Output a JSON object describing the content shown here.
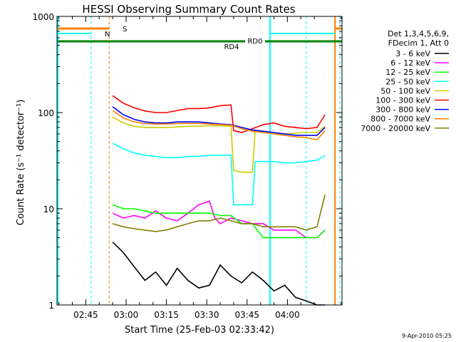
{
  "chart_data": {
    "type": "line",
    "title": "HESSI Observing Summary Count Rates",
    "xlabel": "Start Time (25-Feb-03 02:33:42)",
    "ylabel": "Count Rate (s⁻¹ detector⁻¹)",
    "y_scale": "log",
    "ylim": [
      1,
      1000
    ],
    "xlim_minutes": [
      -10.7,
      95.3
    ],
    "x_ticks": [
      {
        "label": "02:45",
        "minute": 0
      },
      {
        "label": "03:00",
        "minute": 15
      },
      {
        "label": "03:15",
        "minute": 30
      },
      {
        "label": "03:30",
        "minute": 45
      },
      {
        "label": "03:45",
        "minute": 60
      },
      {
        "label": "04:00",
        "minute": 75
      }
    ],
    "y_ticks": [
      {
        "label": "1",
        "value": 1
      },
      {
        "label": "10",
        "value": 10
      },
      {
        "label": "100",
        "value": 100
      },
      {
        "label": "1000",
        "value": 1000
      }
    ],
    "legend": {
      "header": [
        "Det 1,3,4,5,6,9,",
        "FDecim 1, Att 0"
      ],
      "placement": "right"
    },
    "series": [
      {
        "name": "3 - 6 keV",
        "color": "#000000",
        "x": [
          10,
          14,
          18,
          22,
          26,
          30,
          34,
          38,
          42,
          46,
          50,
          54,
          58,
          62,
          66,
          70,
          74,
          78,
          82,
          86,
          89
        ],
        "values": [
          4.5,
          3.5,
          2.5,
          1.8,
          2.2,
          1.6,
          2.4,
          1.8,
          1.5,
          1.6,
          2.6,
          2.0,
          1.7,
          2.2,
          1.8,
          1.4,
          1.6,
          1.2,
          1.1,
          1.0,
          1.0
        ]
      },
      {
        "name": "6 - 12 keV",
        "color": "#ff00ff",
        "x": [
          10,
          14,
          18,
          22,
          26,
          30,
          34,
          38,
          42,
          46,
          48,
          50,
          54,
          58,
          62,
          66,
          70,
          74,
          78,
          82,
          86,
          89
        ],
        "values": [
          9,
          8,
          8.5,
          8,
          9.5,
          8,
          7.5,
          9,
          11,
          12,
          8,
          7,
          8,
          7.5,
          7,
          7,
          6,
          6,
          6,
          5,
          5,
          6
        ]
      },
      {
        "name": "12 - 25 keV",
        "color": "#00ff00",
        "x": [
          10,
          14,
          18,
          22,
          26,
          30,
          34,
          38,
          42,
          46,
          50,
          54,
          58,
          62,
          66,
          70,
          74,
          78,
          82,
          86,
          89
        ],
        "values": [
          11,
          10,
          10,
          9.5,
          9,
          9,
          9,
          9,
          9,
          9,
          8.5,
          8.5,
          7,
          7,
          5,
          5,
          5,
          5,
          5,
          5,
          6
        ]
      },
      {
        "name": "25 - 50 keV",
        "color": "#00ffff",
        "x": [
          10,
          14,
          18,
          22,
          26,
          30,
          34,
          38,
          42,
          46,
          50,
          54,
          55,
          58,
          62,
          63,
          66,
          70,
          74,
          78,
          82,
          86,
          89
        ],
        "values": [
          48,
          42,
          38,
          36,
          35,
          34,
          34,
          35,
          35,
          36,
          36,
          36,
          11,
          11,
          11,
          31,
          31,
          31,
          30,
          30,
          31,
          32,
          36
        ]
      },
      {
        "name": "50 - 100 keV",
        "color": "#cccc00",
        "x": [
          10,
          14,
          18,
          22,
          26,
          30,
          34,
          38,
          42,
          46,
          50,
          54,
          55,
          58,
          62,
          63,
          66,
          70,
          74,
          78,
          82,
          86,
          89
        ],
        "values": [
          90,
          78,
          72,
          70,
          70,
          70,
          71,
          72,
          72,
          73,
          73,
          72,
          25,
          24,
          24,
          65,
          63,
          60,
          60,
          61,
          62,
          62,
          72
        ]
      },
      {
        "name": "100 - 300 keV",
        "color": "#ff0000",
        "x": [
          10,
          14,
          18,
          22,
          26,
          30,
          34,
          38,
          42,
          46,
          50,
          54,
          55,
          58,
          62,
          66,
          70,
          74,
          78,
          82,
          86,
          89
        ],
        "values": [
          150,
          125,
          112,
          104,
          100,
          100,
          105,
          110,
          110,
          112,
          118,
          120,
          65,
          62,
          68,
          75,
          78,
          72,
          70,
          68,
          70,
          95
        ]
      },
      {
        "name": "300 - 800 keV",
        "color": "#0000ff",
        "x": [
          10,
          14,
          18,
          22,
          26,
          30,
          34,
          38,
          42,
          46,
          50,
          54,
          58,
          62,
          66,
          70,
          74,
          78,
          82,
          86,
          89
        ],
        "values": [
          115,
          95,
          85,
          80,
          78,
          78,
          80,
          80,
          80,
          78,
          76,
          75,
          70,
          66,
          64,
          62,
          60,
          58,
          58,
          58,
          70
        ]
      },
      {
        "name": "800 - 7000 keV",
        "color": "#ff8000",
        "x": [
          10,
          14,
          18,
          22,
          26,
          30,
          34,
          38,
          42,
          46,
          50,
          54,
          58,
          62,
          66,
          70,
          74,
          78,
          82,
          86,
          89
        ],
        "values": [
          105,
          88,
          80,
          77,
          76,
          76,
          77,
          77,
          77,
          76,
          75,
          74,
          68,
          64,
          62,
          60,
          58,
          56,
          55,
          52,
          65
        ]
      },
      {
        "name": "7000 - 20000 keV",
        "color": "#808000",
        "x": [
          10,
          14,
          18,
          22,
          26,
          30,
          34,
          38,
          42,
          46,
          50,
          54,
          58,
          62,
          66,
          70,
          74,
          78,
          82,
          86,
          89
        ],
        "values": [
          7,
          6.5,
          6.2,
          6,
          5.8,
          6,
          6.5,
          7,
          7.5,
          7.5,
          8,
          7.5,
          7,
          7,
          6.5,
          6.5,
          6.5,
          6.5,
          6,
          6.5,
          14
        ]
      }
    ],
    "annotations": [
      {
        "label": "S",
        "color": "#ff8000"
      },
      {
        "label": "N",
        "color": "#00ffff"
      },
      {
        "label": "RD0",
        "color": "#008000"
      },
      {
        "label": "RD4",
        "color": "#008000"
      }
    ],
    "timestamp": "9-Apr-2010 05:25"
  }
}
